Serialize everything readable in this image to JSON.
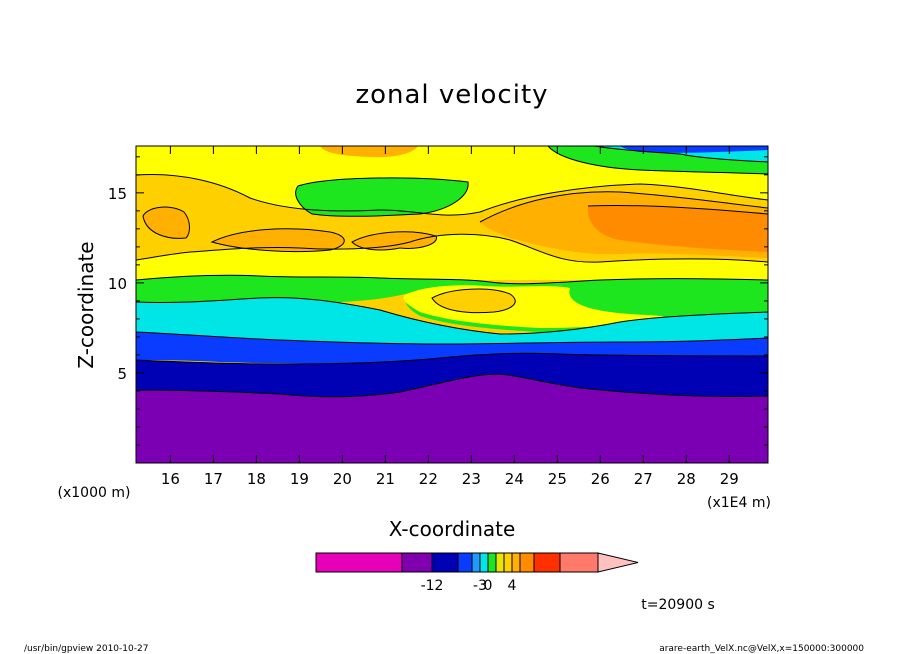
{
  "chart_data": {
    "type": "heatmap",
    "title": "zonal velocity",
    "xlabel": "X-coordinate",
    "ylabel": "Z-coordinate",
    "x_unit_note": "(x1E4 m)",
    "y_unit_note": "(x1000 m)",
    "xlim": [
      15.2,
      29.9
    ],
    "ylim": [
      0,
      17.6
    ],
    "x_ticks": [
      "16",
      "17",
      "18",
      "19",
      "20",
      "21",
      "22",
      "23",
      "24",
      "25",
      "26",
      "27",
      "28",
      "29"
    ],
    "x_tick_values": [
      16,
      17,
      18,
      19,
      20,
      21,
      22,
      23,
      24,
      25,
      26,
      27,
      28,
      29
    ],
    "y_ticks": [
      "5",
      "10",
      "15"
    ],
    "y_tick_values": [
      5,
      10,
      15
    ],
    "colorbar": {
      "colors": [
        "#e600b8",
        "#8000b0",
        "#0000b4",
        "#0a3cff",
        "#1e9bff",
        "#00e6e6",
        "#1ee61e",
        "#e6e600",
        "#ffd000",
        "#ffb000",
        "#ff8c00",
        "#ff3000",
        "#ff7a6a",
        "#ffc0c0"
      ],
      "labels": [
        "-12",
        "-3",
        "0",
        "4"
      ]
    },
    "level_colors": {
      "L1": "#7b00b4",
      "L2": "#0000b4",
      "L3": "#0a3cff",
      "L4": "#00e6e6",
      "L5": "#1ee61e",
      "L6": "#ffff00",
      "L7": "#ffd000",
      "L8": "#ffb000",
      "L9": "#ff8c00",
      "L10": "#ff6400"
    }
  },
  "annotations": {
    "time": "t=20900 s",
    "footer_left": "/usr/bin/gpview  2010-10-27",
    "footer_right": "arare-earth_VelX.nc@VelX,x=150000:300000"
  }
}
